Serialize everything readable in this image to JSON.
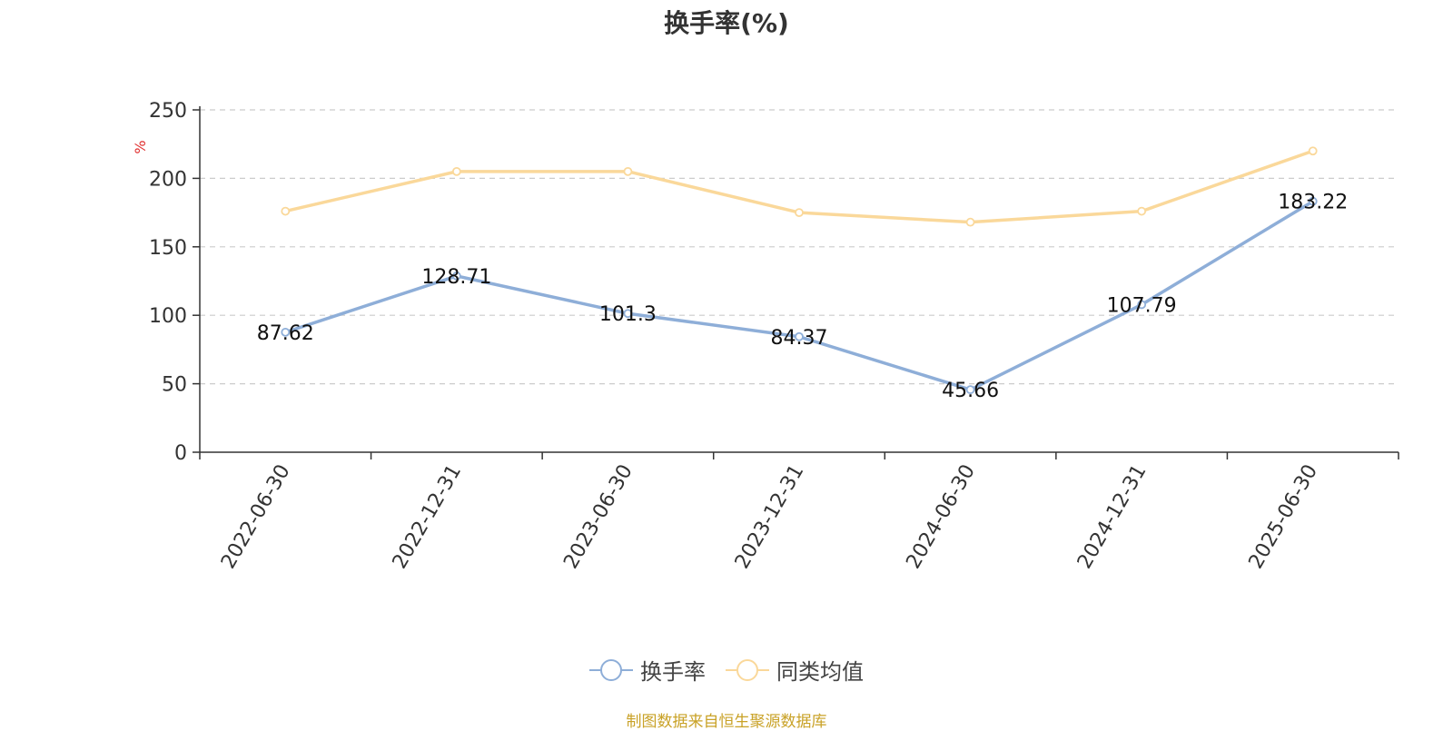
{
  "title": "换手率(%)",
  "footer": "制图数据来自恒生聚源数据库",
  "chart_data": {
    "type": "line",
    "title": "换手率(%)",
    "ylabel": "%",
    "ylim": [
      0,
      250
    ],
    "yticks": [
      0,
      50,
      100,
      150,
      200,
      250
    ],
    "grid": true,
    "legend_position": "bottom-center",
    "categories": [
      "2022-06-30",
      "2022-12-31",
      "2023-06-30",
      "2023-12-31",
      "2024-06-30",
      "2024-12-31",
      "2025-06-30"
    ],
    "series": [
      {
        "name": "换手率",
        "color": "#8eaed8",
        "values": [
          87.62,
          128.71,
          101.3,
          84.37,
          45.66,
          107.79,
          183.22
        ],
        "labels": [
          "87.62",
          "128.71",
          "101.3",
          "84.37",
          "45.66",
          "107.79",
          "183.22"
        ]
      },
      {
        "name": "同类均值",
        "color": "#fad89a",
        "values": [
          176,
          205,
          205,
          175,
          168,
          176,
          220
        ]
      }
    ]
  }
}
